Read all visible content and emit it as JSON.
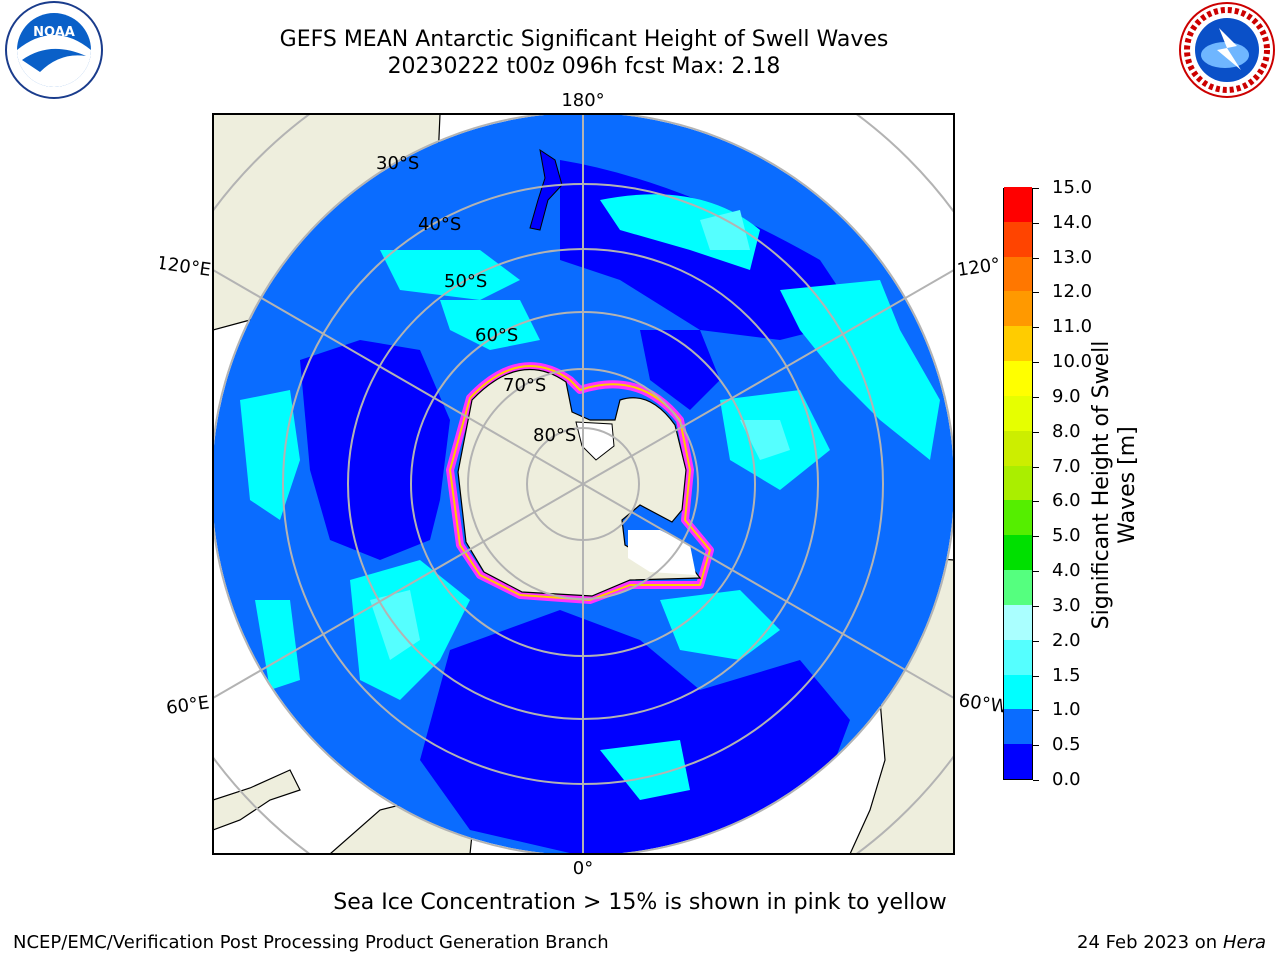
{
  "header": {
    "title_line1": "GEFS MEAN Antarctic Significant Height of Swell Waves",
    "title_line2": "20230222 t00z 096h fcst   Max: 2.18"
  },
  "map": {
    "projection": "south-polar-stereographic",
    "longitude_labels": {
      "top": "180°",
      "bottom": "0°",
      "upper_left": "120°E",
      "lower_left": "60°E",
      "upper_right": "120°",
      "lower_right": "60°W"
    },
    "latitude_labels": [
      "30°S",
      "40°S",
      "50°S",
      "60°S",
      "70°S",
      "80°S"
    ],
    "colors": {
      "ocean_dark": "#0000ff",
      "ocean_mid": "#0a6cff",
      "ocean_light": "#00ffff",
      "land": "#eeeedd",
      "ice": "#ff33ff",
      "grid": "#b3b3b3"
    }
  },
  "colorbar": {
    "title_line1": "Significant Height of Swell",
    "title_line2": "Waves [m]",
    "tick_labels": [
      "0.0",
      "0.5",
      "1.0",
      "1.5",
      "2.0",
      "3.0",
      "4.0",
      "5.0",
      "6.0",
      "7.0",
      "8.0",
      "9.0",
      "10.0",
      "11.0",
      "12.0",
      "13.0",
      "14.0",
      "15.0"
    ],
    "colors": [
      "#0000ff",
      "#0a6cff",
      "#00ffff",
      "#55ffff",
      "#aaffff",
      "#55ff7f",
      "#00e000",
      "#55ee00",
      "#aaee00",
      "#ccee00",
      "#e6ff00",
      "#ffff00",
      "#ffcc00",
      "#ff9900",
      "#ff7700",
      "#ff4400",
      "#ff0000"
    ]
  },
  "footer": {
    "note": "Sea Ice Concentration > 15% is shown in pink to yellow",
    "left": "NCEP/EMC/Verification Post Processing Product Generation Branch",
    "right_date": "24 Feb 2023 on",
    "right_host": "Hera"
  },
  "logos": {
    "noaa_text": "NOAA"
  }
}
